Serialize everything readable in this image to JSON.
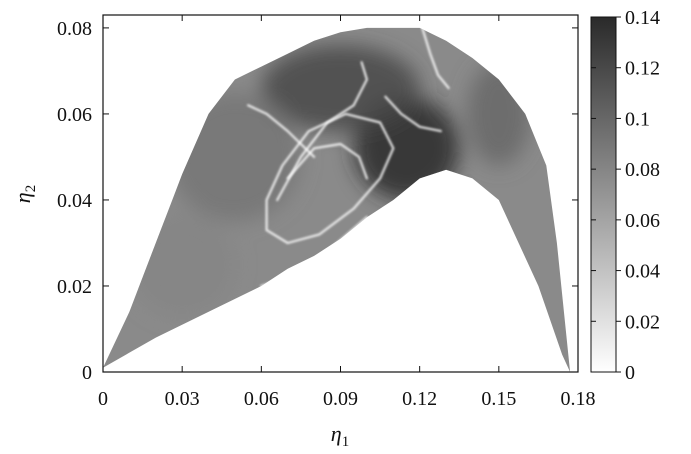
{
  "chart_data": {
    "type": "heatmap",
    "title": "",
    "xlabel": "η1",
    "ylabel": "η2",
    "x_axis_label": {
      "symbol": "η",
      "subscript": "1"
    },
    "y_axis_label": {
      "symbol": "η",
      "subscript": "2"
    },
    "xlim": [
      0,
      0.18
    ],
    "ylim": [
      0,
      0.083
    ],
    "x_ticks": [
      "0",
      "0.03",
      "0.06",
      "0.09",
      "0.12",
      "0.15",
      "0.18"
    ],
    "x_tick_values": [
      0,
      0.03,
      0.06,
      0.09,
      0.12,
      0.15,
      0.18
    ],
    "y_ticks": [
      "0",
      "0.02",
      "0.04",
      "0.06",
      "0.08"
    ],
    "y_tick_values": [
      0,
      0.02,
      0.04,
      0.06,
      0.08
    ],
    "colorbar": {
      "range": [
        0,
        0.14
      ],
      "ticks": [
        "0",
        "0.02",
        "0.04",
        "0.06",
        "0.08",
        "0.1",
        "0.12",
        "0.14"
      ],
      "tick_values": [
        0,
        0.02,
        0.04,
        0.06,
        0.08,
        0.1,
        0.12,
        0.14
      ],
      "colormap": "grayscale",
      "low_color": "#ffffff",
      "high_color": "#2a2a2a"
    },
    "region_boundary": {
      "upper": [
        [
          0.0,
          0.001
        ],
        [
          0.01,
          0.014
        ],
        [
          0.02,
          0.03
        ],
        [
          0.03,
          0.046
        ],
        [
          0.04,
          0.06
        ],
        [
          0.05,
          0.068
        ],
        [
          0.06,
          0.071
        ],
        [
          0.07,
          0.074
        ],
        [
          0.08,
          0.077
        ],
        [
          0.09,
          0.079
        ],
        [
          0.1,
          0.08
        ],
        [
          0.11,
          0.08
        ],
        [
          0.12,
          0.08
        ],
        [
          0.13,
          0.077
        ],
        [
          0.14,
          0.073
        ],
        [
          0.15,
          0.068
        ],
        [
          0.16,
          0.06
        ],
        [
          0.168,
          0.048
        ],
        [
          0.172,
          0.03
        ],
        [
          0.175,
          0.012
        ],
        [
          0.177,
          0.0
        ]
      ],
      "lower": [
        [
          0.177,
          0.0
        ],
        [
          0.174,
          0.004
        ],
        [
          0.165,
          0.02
        ],
        [
          0.15,
          0.04
        ],
        [
          0.14,
          0.045
        ],
        [
          0.13,
          0.047
        ],
        [
          0.12,
          0.045
        ],
        [
          0.11,
          0.04
        ],
        [
          0.1,
          0.036
        ],
        [
          0.09,
          0.031
        ],
        [
          0.08,
          0.027
        ],
        [
          0.07,
          0.024
        ],
        [
          0.06,
          0.02
        ],
        [
          0.04,
          0.014
        ],
        [
          0.02,
          0.008
        ],
        [
          0.0,
          0.001
        ]
      ]
    },
    "hotspots": [
      {
        "x": 0.115,
        "y": 0.052,
        "value": 0.14,
        "radius_x": 0.02,
        "radius_y": 0.012
      },
      {
        "x": 0.09,
        "y": 0.066,
        "value": 0.12,
        "radius_x": 0.03,
        "radius_y": 0.01
      },
      {
        "x": 0.05,
        "y": 0.05,
        "value": 0.09,
        "radius_x": 0.025,
        "radius_y": 0.015
      },
      {
        "x": 0.15,
        "y": 0.06,
        "value": 0.1,
        "radius_x": 0.012,
        "radius_y": 0.012
      },
      {
        "x": 0.03,
        "y": 0.025,
        "value": 0.08,
        "radius_x": 0.02,
        "radius_y": 0.012
      }
    ],
    "bright_curves": [
      [
        [
          0.062,
          0.033
        ],
        [
          0.07,
          0.03
        ],
        [
          0.082,
          0.032
        ],
        [
          0.095,
          0.038
        ],
        [
          0.105,
          0.045
        ],
        [
          0.11,
          0.052
        ],
        [
          0.105,
          0.058
        ],
        [
          0.092,
          0.06
        ],
        [
          0.078,
          0.056
        ],
        [
          0.068,
          0.048
        ],
        [
          0.062,
          0.04
        ],
        [
          0.062,
          0.033
        ]
      ],
      [
        [
          0.066,
          0.04
        ],
        [
          0.075,
          0.05
        ],
        [
          0.085,
          0.058
        ],
        [
          0.095,
          0.062
        ],
        [
          0.1,
          0.068
        ],
        [
          0.098,
          0.072
        ]
      ],
      [
        [
          0.07,
          0.045
        ],
        [
          0.08,
          0.052
        ],
        [
          0.09,
          0.053
        ],
        [
          0.097,
          0.05
        ],
        [
          0.1,
          0.045
        ]
      ],
      [
        [
          0.107,
          0.064
        ],
        [
          0.113,
          0.06
        ],
        [
          0.12,
          0.057
        ],
        [
          0.128,
          0.056
        ]
      ],
      [
        [
          0.121,
          0.08
        ],
        [
          0.124,
          0.074
        ],
        [
          0.127,
          0.069
        ],
        [
          0.131,
          0.066
        ]
      ],
      [
        [
          0.055,
          0.062
        ],
        [
          0.062,
          0.06
        ],
        [
          0.07,
          0.056
        ],
        [
          0.08,
          0.05
        ]
      ],
      [
        [
          0.06,
          0.02
        ],
        [
          0.07,
          0.022
        ],
        [
          0.085,
          0.028
        ],
        [
          0.1,
          0.036
        ]
      ]
    ]
  }
}
